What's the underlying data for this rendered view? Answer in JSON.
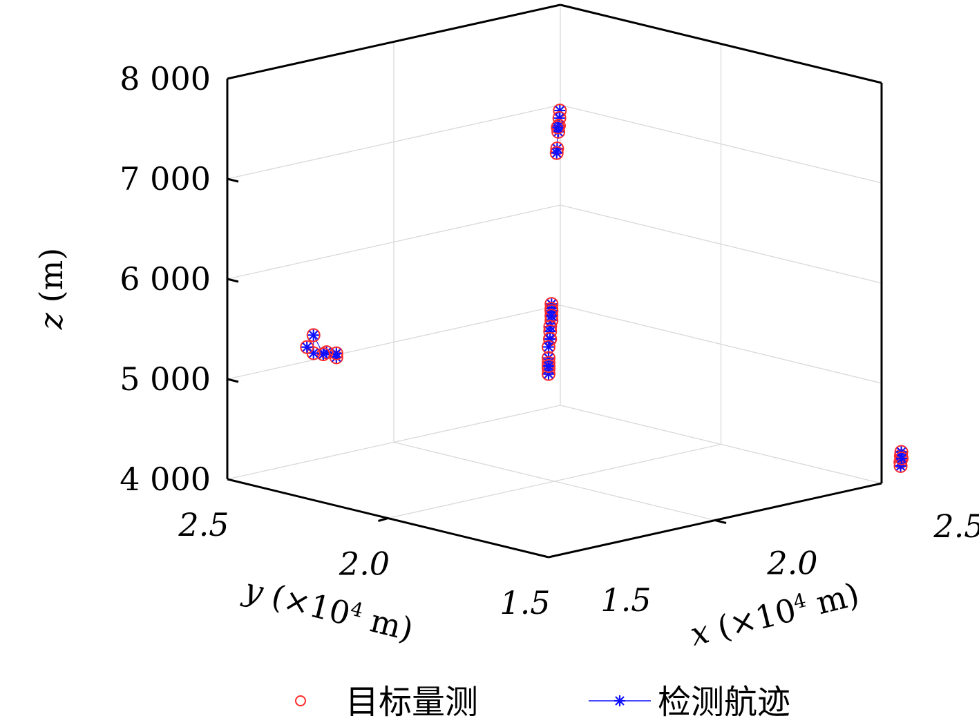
{
  "chart_data": {
    "type": "scatter",
    "projection": "3d",
    "grid": true,
    "legend_position": "bottom",
    "x_axis": {
      "label_var": "x",
      "label_rest": " (×10",
      "label_sup": "4",
      "label_unit": " m)",
      "range": [
        1.5,
        2.5
      ],
      "ticks": [
        1.5,
        2.0,
        2.5
      ],
      "tick_labels": [
        "1.5",
        "2.0",
        "2.5"
      ]
    },
    "y_axis": {
      "label_var": "y",
      "label_rest": " (×10",
      "label_sup": "4",
      "label_unit": " m)",
      "range": [
        1.5,
        2.5
      ],
      "ticks": [
        1.5,
        2.0,
        2.5
      ],
      "tick_labels": [
        "1.5",
        "2.0",
        "2.5"
      ]
    },
    "z_axis": {
      "label_var": "z",
      "label_rest": " (m)",
      "range": [
        4000,
        8000
      ],
      "ticks": [
        4000,
        5000,
        6000,
        7000,
        8000
      ],
      "tick_labels": [
        "4 000",
        "5 000",
        "6 000",
        "7 000",
        "8 000"
      ]
    },
    "series": [
      {
        "name": "目标量测",
        "marker": "circle",
        "color": "#ff2a2a"
      },
      {
        "name": "检测航迹",
        "marker": "star-line",
        "color": "#1010ff"
      }
    ],
    "targets": [
      {
        "points": [
          [
            2.46,
            2.46,
            7005
          ],
          [
            2.42,
            2.42,
            6990
          ],
          [
            2.38,
            2.38,
            6975
          ],
          [
            2.33,
            2.33,
            6990
          ],
          [
            2.28,
            2.28,
            7110
          ],
          [
            2.23,
            2.23,
            6975
          ],
          [
            2.19,
            2.19,
            6990
          ]
        ]
      },
      {
        "points": [
          [
            1.745,
            1.745,
            6090
          ],
          [
            1.75,
            1.75,
            6150
          ],
          [
            1.745,
            1.745,
            6110
          ],
          [
            1.755,
            1.755,
            6070
          ],
          [
            1.75,
            1.75,
            5985
          ],
          [
            1.745,
            1.745,
            6040
          ]
        ]
      },
      {
        "points": [
          [
            1.64,
            1.64,
            6090
          ],
          [
            1.62,
            1.62,
            6000
          ],
          [
            1.63,
            1.63,
            5980
          ],
          [
            1.635,
            1.635,
            6050
          ],
          [
            1.625,
            1.625,
            5990
          ]
        ]
      },
      {
        "points": [
          [
            1.5,
            1.5,
            6100
          ],
          [
            1.5,
            1.5,
            5990
          ],
          [
            1.5,
            1.5,
            5940
          ],
          [
            1.5,
            1.5,
            5880
          ],
          [
            1.5,
            1.5,
            5830
          ],
          [
            1.5,
            1.5,
            5910
          ]
        ]
      },
      {
        "points": [
          [
            1.76,
            2.43,
            5080
          ],
          [
            1.76,
            2.43,
            5120
          ],
          [
            1.745,
            2.445,
            5130
          ],
          [
            1.74,
            2.45,
            5110
          ],
          [
            1.725,
            2.465,
            5300
          ],
          [
            1.725,
            2.465,
            5120
          ],
          [
            1.715,
            2.475,
            5180
          ]
        ]
      },
      {
        "points": [
          [
            2.46,
            1.4,
            4320
          ],
          [
            2.48,
            1.42,
            4250
          ],
          [
            2.5,
            1.44,
            4320
          ],
          [
            2.54,
            1.48,
            4300
          ],
          [
            2.57,
            1.51,
            4190
          ]
        ]
      }
    ]
  }
}
